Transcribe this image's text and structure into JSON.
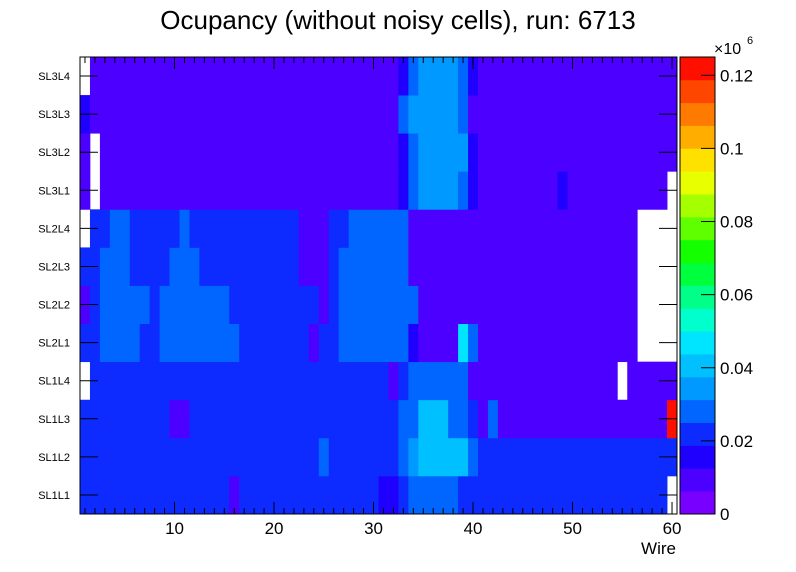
{
  "chart_data": {
    "type": "heatmap",
    "title": "Ocupancy (without noisy cells), run: 6713",
    "xlabel": "Wire",
    "ylabel": "",
    "xlim": [
      0.5,
      60.5
    ],
    "x_ticks": [
      "10",
      "20",
      "30",
      "40",
      "50",
      "60"
    ],
    "layers": [
      "SL1L1",
      "SL1L2",
      "SL1L3",
      "SL1L4",
      "SL2L1",
      "SL2L2",
      "SL2L3",
      "SL2L4",
      "SL3L1",
      "SL3L2",
      "SL3L3",
      "SL3L4"
    ],
    "z_multiplier": "×10",
    "z_exponent": "6",
    "z_ticks": [
      "0",
      "0.02",
      "0.04",
      "0.06",
      "0.08",
      "0.1",
      "0.12"
    ],
    "zlim": [
      0,
      0.125
    ],
    "palette": [
      "#7800ff",
      "#4c00ff",
      "#1f00ff",
      "#0d2bff",
      "#0066ff",
      "#0099ff",
      "#00c0ff",
      "#00e5ff",
      "#00ffcc",
      "#00ff88",
      "#00ff3c",
      "#14ff00",
      "#60ff00",
      "#a5ff00",
      "#e8ff00",
      "#ffe100",
      "#ffae00",
      "#ff7a00",
      "#ff4600",
      "#ff0f00"
    ],
    "cells": [
      {
        "layer": 0,
        "ranges": [
          [
            1,
            60,
            0.02
          ]
        ],
        "overrides": [
          [
            16,
            16,
            0.012
          ],
          [
            31,
            32,
            0.013
          ],
          [
            34,
            38,
            0.03
          ],
          [
            60,
            60,
            null
          ]
        ]
      },
      {
        "layer": 1,
        "ranges": [
          [
            1,
            60,
            0.021
          ]
        ],
        "overrides": [
          [
            25,
            25,
            0.028
          ],
          [
            33,
            33,
            0.03
          ],
          [
            34,
            34,
            0.035
          ],
          [
            35,
            38,
            0.043
          ],
          [
            39,
            39,
            0.038
          ],
          [
            40,
            40,
            0.028
          ]
        ]
      },
      {
        "layer": 2,
        "ranges": [
          [
            1,
            60,
            0.02
          ]
        ],
        "overrides": [
          [
            10,
            11,
            0.012
          ],
          [
            33,
            34,
            0.026
          ],
          [
            35,
            37,
            0.038
          ],
          [
            38,
            39,
            0.026
          ],
          [
            41,
            41,
            0.012
          ],
          [
            42,
            42,
            0.026
          ],
          [
            43,
            60,
            0.011
          ],
          [
            60,
            60,
            0.12
          ]
        ]
      },
      {
        "layer": 3,
        "ranges": [
          [
            1,
            60,
            0.02
          ]
        ],
        "overrides": [
          [
            1,
            1,
            null
          ],
          [
            32,
            32,
            0.011
          ],
          [
            34,
            39,
            0.03
          ],
          [
            40,
            54,
            0.011
          ],
          [
            55,
            55,
            null
          ],
          [
            56,
            60,
            0.011
          ]
        ]
      },
      {
        "layer": 4,
        "ranges": [
          [
            1,
            60,
            0.021
          ]
        ],
        "overrides": [
          [
            3,
            6,
            0.028
          ],
          [
            9,
            16,
            0.03
          ],
          [
            24,
            24,
            0.011
          ],
          [
            27,
            33,
            0.03
          ],
          [
            34,
            34,
            0.013
          ],
          [
            35,
            39,
            0.012
          ],
          [
            39,
            39,
            0.045
          ],
          [
            40,
            40,
            0.03
          ],
          [
            41,
            57,
            0.012
          ],
          [
            57,
            60,
            null
          ]
        ]
      },
      {
        "layer": 5,
        "ranges": [
          [
            1,
            60,
            0.021
          ]
        ],
        "overrides": [
          [
            1,
            1,
            0.012
          ],
          [
            3,
            7,
            0.028
          ],
          [
            9,
            15,
            0.03
          ],
          [
            25,
            25,
            0.012
          ],
          [
            27,
            34,
            0.03
          ],
          [
            35,
            57,
            0.012
          ],
          [
            57,
            60,
            null
          ]
        ]
      },
      {
        "layer": 6,
        "ranges": [
          [
            1,
            60,
            0.021
          ]
        ],
        "overrides": [
          [
            3,
            5,
            0.028
          ],
          [
            10,
            12,
            0.03
          ],
          [
            23,
            25,
            0.011
          ],
          [
            27,
            33,
            0.03
          ],
          [
            34,
            57,
            0.012
          ],
          [
            45,
            45,
            0.009
          ],
          [
            57,
            60,
            null
          ]
        ]
      },
      {
        "layer": 7,
        "ranges": [
          [
            1,
            60,
            0.021
          ]
        ],
        "overrides": [
          [
            1,
            1,
            null
          ],
          [
            4,
            5,
            0.028
          ],
          [
            11,
            11,
            0.03
          ],
          [
            23,
            25,
            0.011
          ],
          [
            28,
            33,
            0.03
          ],
          [
            34,
            57,
            0.012
          ],
          [
            45,
            45,
            0.009
          ],
          [
            47,
            49,
            0.009
          ],
          [
            57,
            60,
            null
          ]
        ]
      },
      {
        "layer": 8,
        "ranges": [
          [
            1,
            60,
            0.012
          ]
        ],
        "overrides": [
          [
            1,
            1,
            0.009
          ],
          [
            2,
            2,
            null
          ],
          [
            33,
            33,
            0.018
          ],
          [
            34,
            34,
            0.026
          ],
          [
            35,
            38,
            0.035
          ],
          [
            39,
            39,
            0.026
          ],
          [
            40,
            40,
            0.018
          ],
          [
            49,
            49,
            0.018
          ],
          [
            59,
            59,
            0.009
          ],
          [
            60,
            60,
            null
          ]
        ]
      },
      {
        "layer": 9,
        "ranges": [
          [
            1,
            60,
            0.012
          ]
        ],
        "overrides": [
          [
            2,
            2,
            null
          ],
          [
            33,
            33,
            0.018
          ],
          [
            34,
            34,
            0.026
          ],
          [
            35,
            39,
            0.035
          ],
          [
            40,
            40,
            0.018
          ],
          [
            58,
            60,
            0.009
          ]
        ]
      },
      {
        "layer": 10,
        "ranges": [
          [
            1,
            60,
            0.012
          ]
        ],
        "overrides": [
          [
            1,
            1,
            0.013
          ],
          [
            33,
            33,
            0.026
          ],
          [
            34,
            38,
            0.035
          ],
          [
            39,
            39,
            0.026
          ],
          [
            44,
            44,
            0.009
          ],
          [
            58,
            60,
            0.009
          ]
        ]
      },
      {
        "layer": 11,
        "ranges": [
          [
            1,
            60,
            0.012
          ]
        ],
        "overrides": [
          [
            1,
            1,
            null
          ],
          [
            2,
            2,
            0.009
          ],
          [
            33,
            33,
            0.018
          ],
          [
            34,
            34,
            0.026
          ],
          [
            35,
            38,
            0.035
          ],
          [
            39,
            39,
            0.026
          ],
          [
            40,
            40,
            0.018
          ],
          [
            59,
            60,
            0.009
          ]
        ]
      }
    ]
  }
}
